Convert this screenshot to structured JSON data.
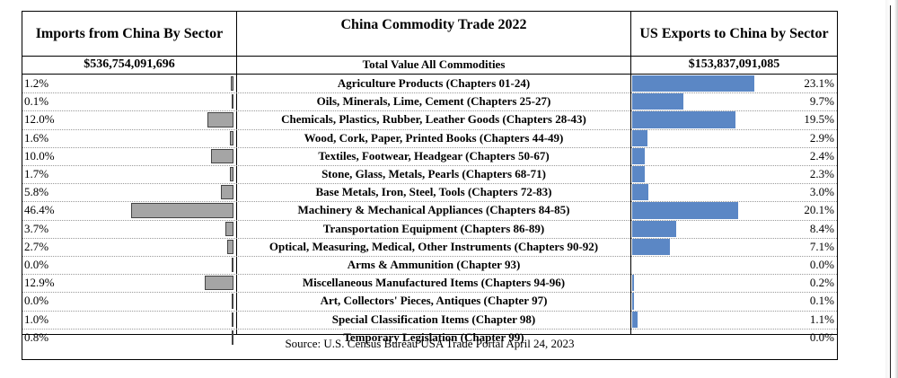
{
  "header": {
    "left_title": "Imports from China By Sector",
    "center_title": "China Commodity Trade 2022",
    "right_title": "US Exports to China by Sector"
  },
  "totals": {
    "imports": "$536,754,091,696",
    "center": "Total Value All Commodities",
    "exports": "$153,837,091,085"
  },
  "source": "Source: U.S. Census Bureau USA Trade Portal April 24, 2023",
  "colors": {
    "import_bar": "#a5a5a5",
    "export_bar": "#5b87c5"
  },
  "chart_data": {
    "type": "bar",
    "categories": [
      "Agriculture Products (Chapters 01-24)",
      "Oils, Minerals, Lime, Cement  (Chapters 25-27)",
      "Chemicals, Plastics, Rubber, Leather Goods (Chapters 28-43)",
      "Wood, Cork, Paper, Printed Books (Chapters 44-49)",
      "Textiles, Footwear,  Headgear (Chapters 50-67)",
      "Stone, Glass, Metals, Pearls (Chapters 68-71)",
      "Base Metals, Iron, Steel, Tools (Chapters 72-83)",
      "Machinery & Mechanical Appliances (Chapters 84-85)",
      "Transportation Equipment (Chapters 86-89)",
      "Optical, Measuring, Medical, Other Instruments (Chapters 90-92)",
      "Arms & Ammunition (Chapter 93)",
      "Miscellaneous Manufactured Items (Chapters 94-96)",
      "Art, Collectors' Pieces, Antiques (Chapter 97)",
      "Special Classification Items (Chapter 98)",
      "Temporary Legislation (Chapter 99)"
    ],
    "series": [
      {
        "name": "Imports from China By Sector",
        "values": [
          1.2,
          0.1,
          12.0,
          1.6,
          10.0,
          1.7,
          5.8,
          46.4,
          3.7,
          2.7,
          0.0,
          12.9,
          0.0,
          1.0,
          0.8
        ],
        "labels": [
          "1.2%",
          "0.1%",
          "12.0%",
          "1.6%",
          "10.0%",
          "1.7%",
          "5.8%",
          "46.4%",
          "3.7%",
          "2.7%",
          "0.0%",
          "12.9%",
          "0.0%",
          "1.0%",
          "0.8%"
        ]
      },
      {
        "name": "US Exports to China by Sector",
        "values": [
          23.1,
          9.7,
          19.5,
          2.9,
          2.4,
          2.3,
          3.0,
          20.1,
          8.4,
          7.1,
          0.0,
          0.2,
          0.1,
          1.1,
          0.0
        ],
        "labels": [
          "23.1%",
          "9.7%",
          "19.5%",
          "2.9%",
          "2.4%",
          "2.3%",
          "3.0%",
          "20.1%",
          "8.4%",
          "7.1%",
          "0.0%",
          "0.2%",
          "0.1%",
          "1.1%",
          "0.0%"
        ]
      }
    ],
    "title": "China Commodity Trade 2022",
    "xlabel": "",
    "ylabel": ""
  }
}
